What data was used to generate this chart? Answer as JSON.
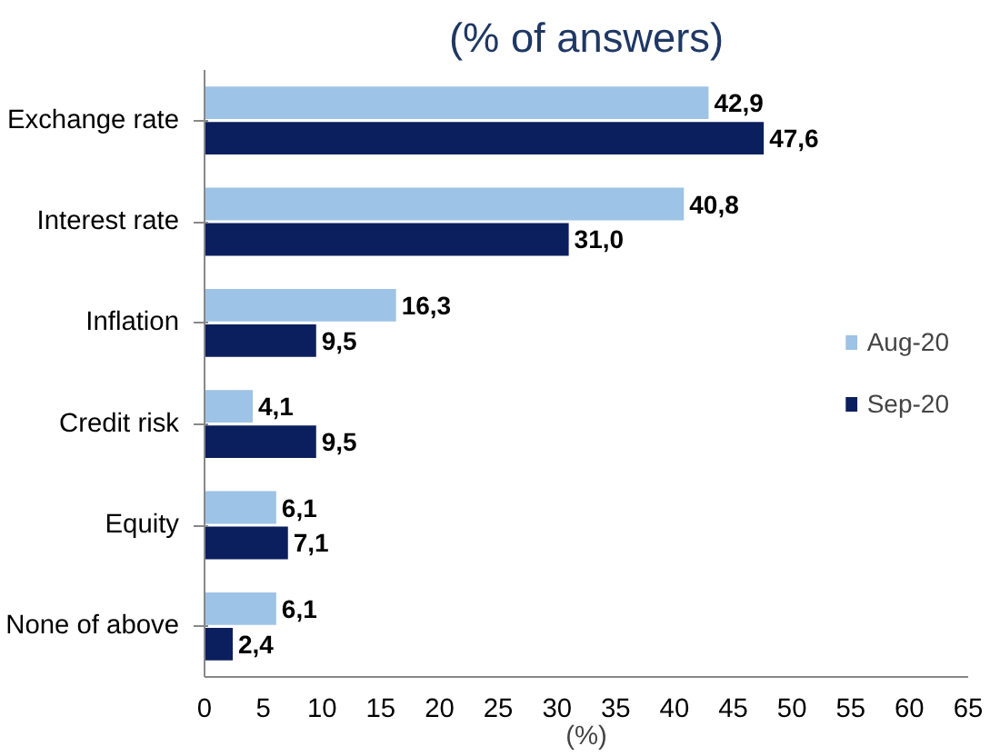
{
  "chart_data": {
    "type": "bar",
    "orientation": "horizontal",
    "title": "(% of answers)",
    "xlabel": "(%)",
    "categories": [
      "Exchange rate",
      "Interest rate",
      "Inflation",
      "Credit risk",
      "Equity",
      "None of above"
    ],
    "series": [
      {
        "name": "Aug-20",
        "color": "#9dc3e6",
        "values": [
          42.9,
          40.8,
          16.3,
          4.1,
          6.1,
          6.1
        ],
        "value_labels": [
          "42,9",
          "40,8",
          "16,3",
          "4,1",
          "6,1",
          "6,1"
        ]
      },
      {
        "name": "Sep-20",
        "color": "#0b1f5e",
        "values": [
          47.6,
          31.0,
          9.5,
          9.5,
          7.1,
          2.4
        ],
        "value_labels": [
          "47,6",
          "31,0",
          "9,5",
          "9,5",
          "7,1",
          "2,4"
        ]
      }
    ],
    "xlim": [
      0,
      65
    ],
    "xticks": [
      0,
      5,
      10,
      15,
      20,
      25,
      30,
      35,
      40,
      45,
      50,
      55,
      60,
      65
    ],
    "grid": false,
    "legend": "right"
  }
}
